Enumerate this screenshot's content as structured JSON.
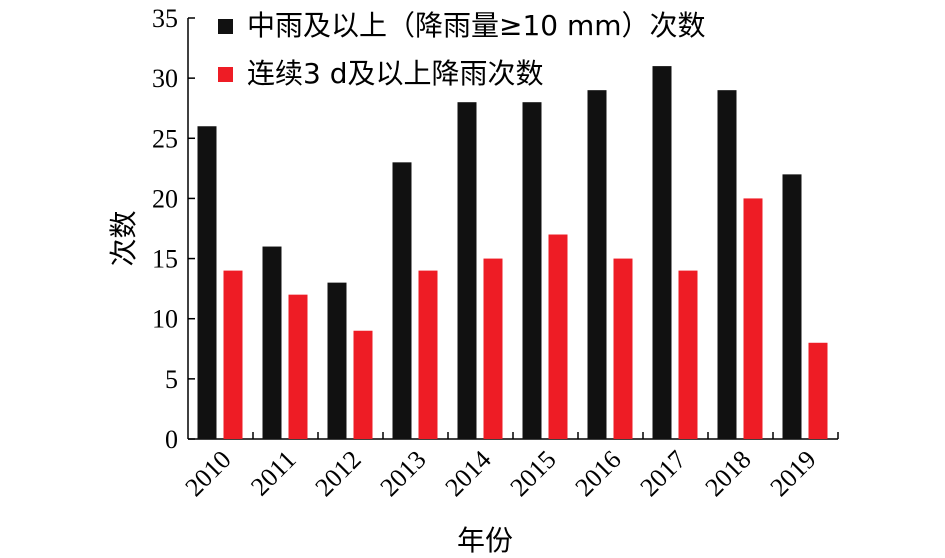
{
  "chart_data": {
    "type": "bar",
    "categories": [
      "2010",
      "2011",
      "2012",
      "2013",
      "2014",
      "2015",
      "2016",
      "2017",
      "2018",
      "2019"
    ],
    "series": [
      {
        "name": "中雨及以上（降雨量≥10 mm）次数",
        "color": "#111111",
        "values": [
          26,
          16,
          13,
          23,
          28,
          28,
          29,
          31,
          29,
          22
        ]
      },
      {
        "name": "连续3 d及以上降雨次数",
        "color": "#ee1c25",
        "values": [
          14,
          12,
          9,
          14,
          15,
          17,
          15,
          14,
          20,
          8
        ]
      }
    ],
    "xlabel": "年份",
    "ylabel": "次数",
    "ylim": [
      0,
      35
    ],
    "yticks": [
      0,
      5,
      10,
      15,
      20,
      25,
      30,
      35
    ],
    "legend_position": "top-left",
    "grid": false
  }
}
